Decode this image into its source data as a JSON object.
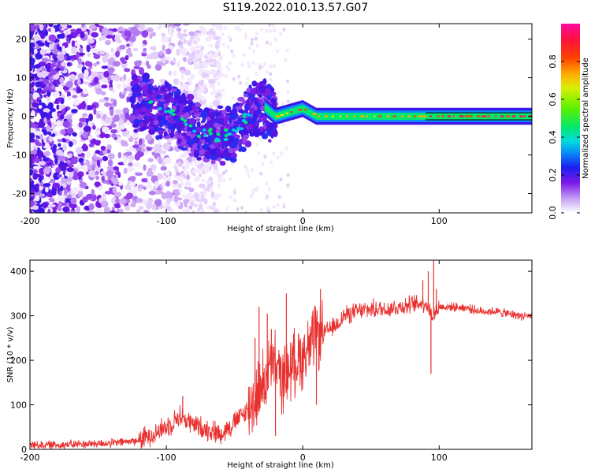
{
  "title": "S119.2022.010.13.57.G07",
  "chart_data": [
    {
      "type": "heatmap",
      "xlabel": "Height of straight line (km)",
      "ylabel": "Frequency (Hz)",
      "xlim": [
        -200,
        168
      ],
      "ylim": [
        -25,
        24
      ],
      "xticks": [
        -200,
        -100,
        0,
        100
      ],
      "xtick_labels": [
        "-200",
        "-100",
        "0",
        "100"
      ],
      "yticks": [
        -20,
        -10,
        0,
        10,
        20
      ],
      "ytick_labels": [
        "-20",
        "-10",
        "0",
        "10",
        "20"
      ],
      "colorbar": {
        "label": "Normalized spectral amplitude",
        "range": [
          0,
          1
        ],
        "ticks": [
          0.0,
          0.2,
          0.4,
          0.6,
          0.8
        ],
        "tick_labels": [
          "0.0",
          "0.2",
          "0.4",
          "0.6",
          "0.8"
        ]
      },
      "ridge": [
        [
          -115,
          3
        ],
        [
          -105,
          2
        ],
        [
          -95,
          1
        ],
        [
          -85,
          -2
        ],
        [
          -75,
          -4
        ],
        [
          -65,
          -5
        ],
        [
          -55,
          -5
        ],
        [
          -48,
          -3
        ],
        [
          -40,
          0
        ],
        [
          -30,
          3
        ],
        [
          -20,
          0
        ],
        [
          -10,
          1
        ],
        [
          0,
          2
        ],
        [
          10,
          0
        ],
        [
          20,
          0
        ],
        [
          40,
          0
        ],
        [
          60,
          0
        ],
        [
          80,
          0
        ],
        [
          90,
          0
        ],
        [
          100,
          0
        ],
        [
          130,
          0
        ],
        [
          168,
          0
        ]
      ]
    },
    {
      "type": "line",
      "xlabel": "Height of straight line (km)",
      "ylabel": "SNR (10 * v/v)",
      "xlim": [
        -200,
        168
      ],
      "ylim": [
        0,
        425
      ],
      "xticks": [
        -200,
        -100,
        0,
        100
      ],
      "xtick_labels": [
        "-200",
        "-100",
        "0",
        "100"
      ],
      "yticks": [
        0,
        100,
        200,
        300,
        400
      ],
      "ytick_labels": [
        "0",
        "100",
        "200",
        "300",
        "400"
      ],
      "color": "#e8312f",
      "x": [
        -200,
        -180,
        -160,
        -140,
        -120,
        -110,
        -100,
        -90,
        -80,
        -70,
        -60,
        -50,
        -40,
        -30,
        -25,
        -20,
        -15,
        -10,
        -5,
        0,
        5,
        10,
        15,
        20,
        25,
        30,
        40,
        50,
        60,
        70,
        80,
        90,
        95,
        100,
        110,
        120,
        130,
        140,
        150,
        160,
        168
      ],
      "values": [
        10,
        10,
        12,
        14,
        20,
        35,
        50,
        75,
        55,
        45,
        35,
        60,
        90,
        140,
        180,
        190,
        155,
        180,
        200,
        210,
        230,
        255,
        260,
        270,
        280,
        300,
        310,
        315,
        315,
        320,
        325,
        330,
        300,
        320,
        320,
        318,
        310,
        310,
        305,
        300,
        300
      ],
      "spikes": [
        [
          -88,
          120
        ],
        [
          -35,
          250
        ],
        [
          -32,
          320
        ],
        [
          -26,
          305
        ],
        [
          -23,
          270
        ],
        [
          -20,
          30
        ],
        [
          -12,
          350
        ],
        [
          -3,
          260
        ],
        [
          10,
          100
        ],
        [
          13,
          360
        ],
        [
          88,
          380
        ],
        [
          92,
          400
        ],
        [
          94,
          170
        ],
        [
          96,
          425
        ],
        [
          98,
          360
        ]
      ]
    }
  ]
}
